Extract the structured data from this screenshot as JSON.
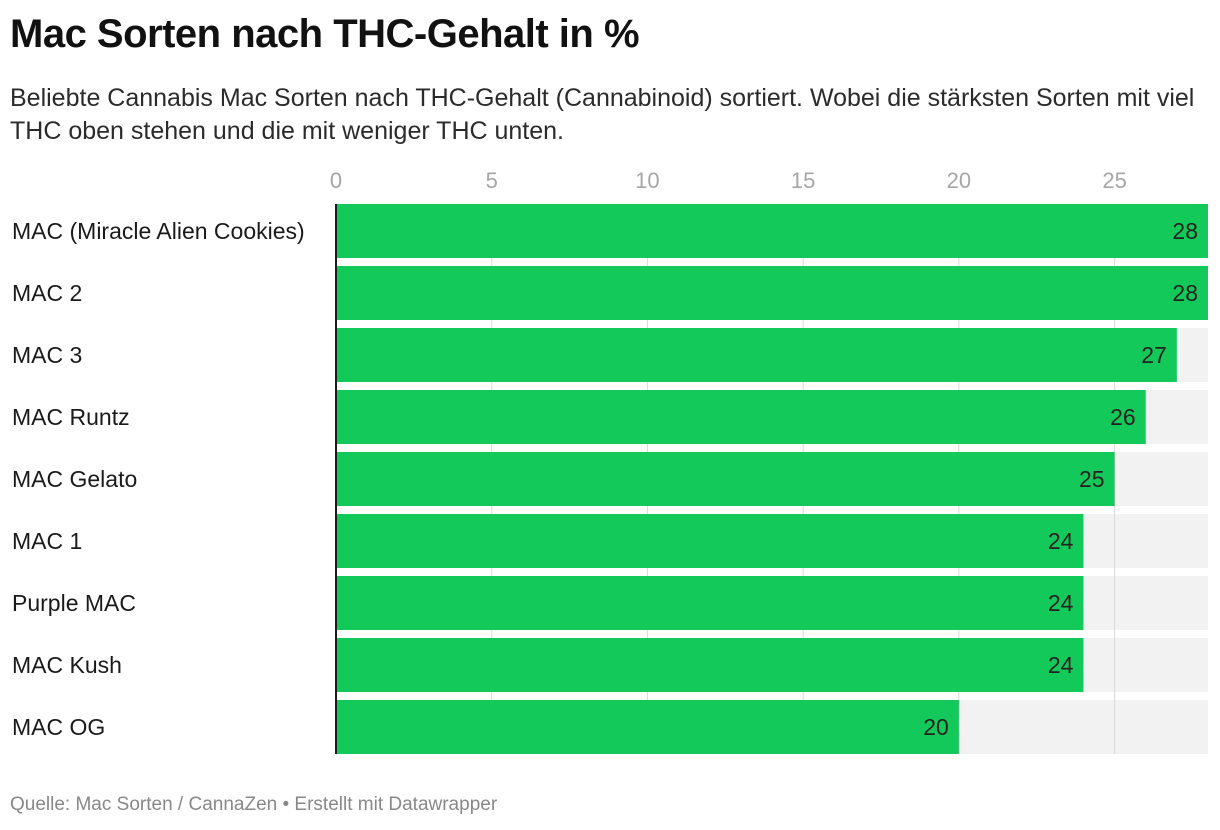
{
  "title": "Mac Sorten nach THC-Gehalt in %",
  "subtitle": "Beliebte Cannabis Mac Sorten nach THC-Gehalt (Cannabinoid) sortiert. Wobei die stärksten Sorten mit viel THC oben stehen und die mit weniger THC unten.",
  "footer": {
    "source_label": "Quelle:",
    "source": "Mac Sorten / CannaZen",
    "separator": "•",
    "credit": "Erstellt mit Datawrapper"
  },
  "colors": {
    "bar": "#13c95a",
    "bar_background": "#f2f2f2",
    "grid": "#d9d9d9",
    "axis": "#1a1a1a",
    "tick_label": "#a6a6a6"
  },
  "chart_data": {
    "type": "bar",
    "orientation": "horizontal",
    "categories": [
      "MAC (Miracle Alien Cookies)",
      "MAC 2",
      "MAC 3",
      "MAC Runtz",
      "MAC Gelato",
      "MAC 1",
      "Purple MAC",
      "MAC Kush",
      "MAC OG"
    ],
    "values": [
      28,
      28,
      27,
      26,
      25,
      24,
      24,
      24,
      20
    ],
    "xlim": [
      0,
      28
    ],
    "xticks": [
      0,
      5,
      10,
      15,
      20,
      25
    ],
    "xaxis_position": "top",
    "grid": true,
    "legend": "none",
    "value_labels": true
  }
}
